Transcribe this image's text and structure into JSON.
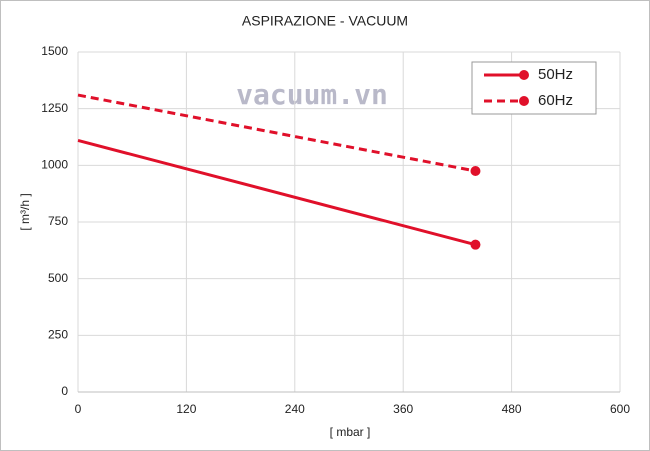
{
  "chart_data": {
    "type": "line",
    "title": "ASPIRAZIONE - VACUUM",
    "xlabel": "[ mbar ]",
    "ylabel": "[ m³/h ]",
    "annotation": "vacuum.vn",
    "series": [
      {
        "name": "50Hz",
        "color": "#e0102a",
        "dash": "solid",
        "x": [
          0,
          440
        ],
        "values": [
          1110,
          650
        ]
      },
      {
        "name": "60Hz",
        "color": "#e0102a",
        "dash": "dashed",
        "x": [
          0,
          440
        ],
        "values": [
          1310,
          975
        ]
      }
    ],
    "xlim": [
      0,
      600
    ],
    "xticks": [
      0,
      120,
      240,
      360,
      480,
      600
    ],
    "ylim": [
      0,
      1500
    ],
    "yticks": [
      0,
      250,
      500,
      750,
      1000,
      1250,
      1500
    ],
    "grid": true,
    "legend": "upper right"
  }
}
